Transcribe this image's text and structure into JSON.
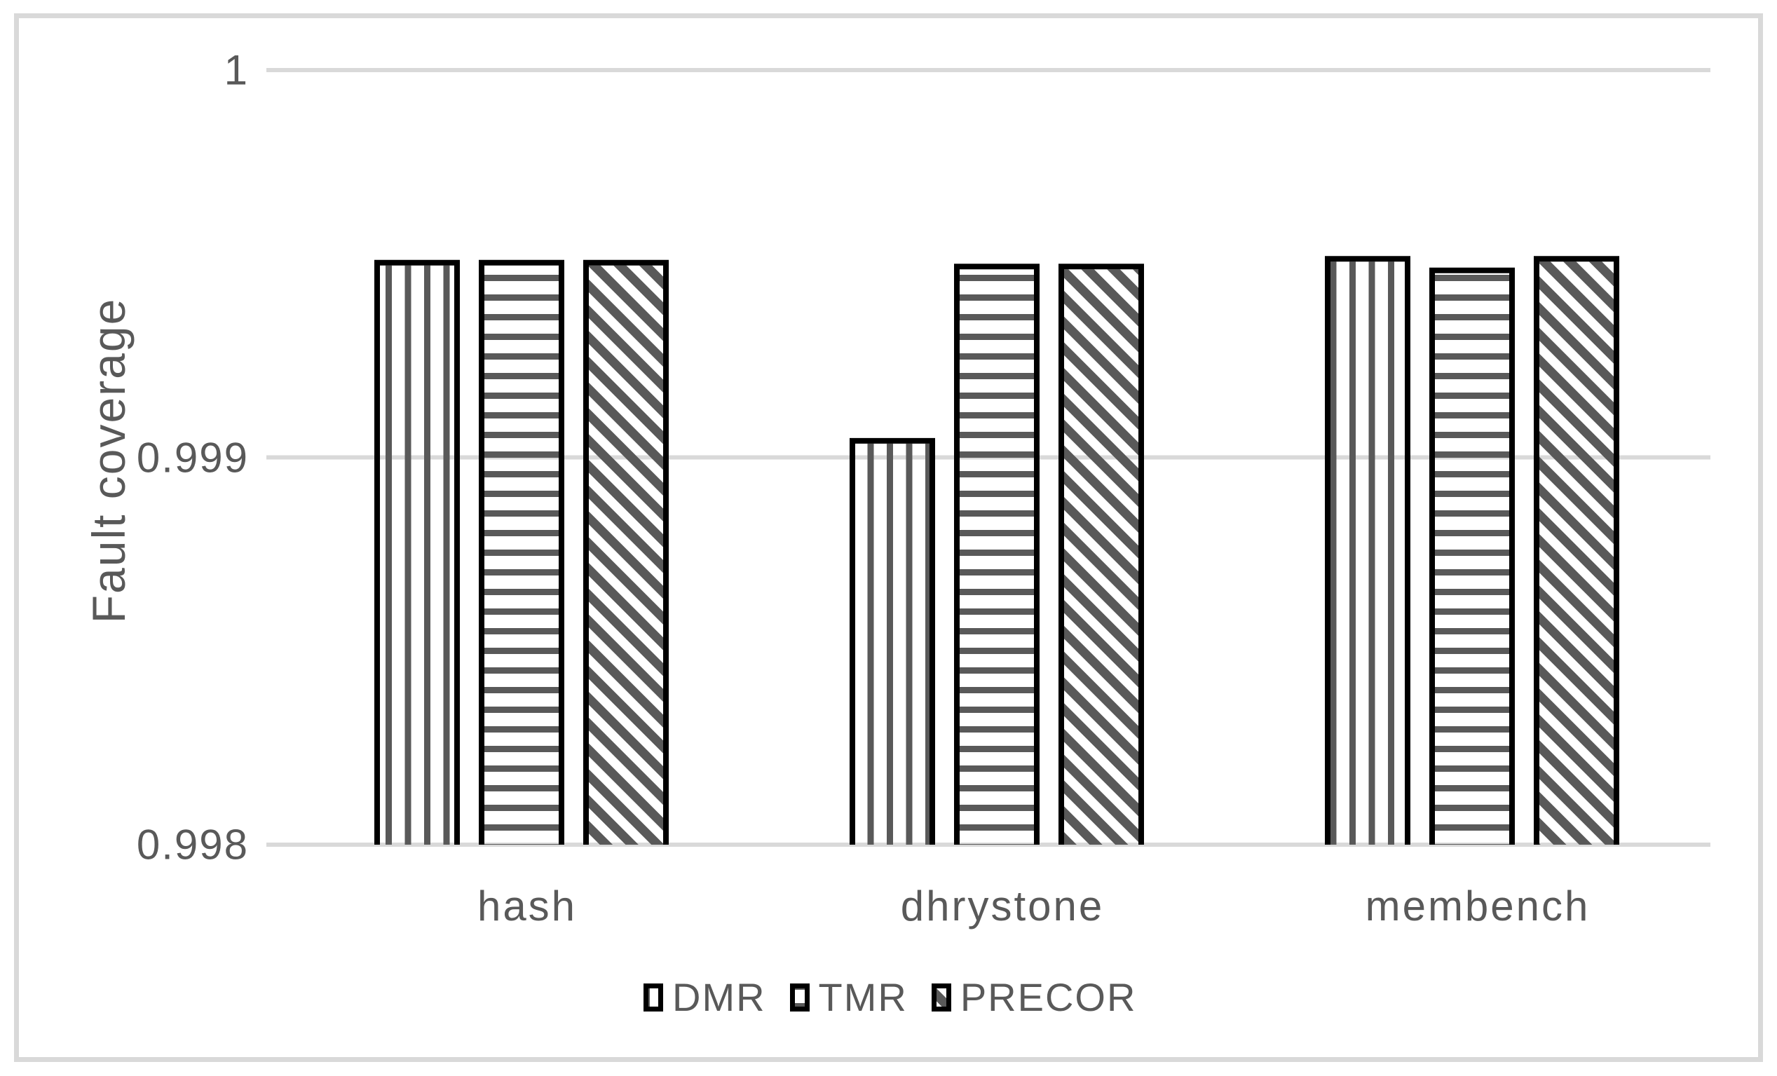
{
  "figure": {
    "background": "#ffffff",
    "border_color": "#d9d9d9"
  },
  "chart_data": {
    "type": "bar",
    "title": "",
    "xlabel": "",
    "ylabel": "Fault coverage",
    "categories": [
      "hash",
      "dhrystone",
      "membench"
    ],
    "series": [
      {
        "name": "DMR",
        "pattern": "vertical-stripes",
        "values": [
          0.99951,
          0.99905,
          0.99952
        ]
      },
      {
        "name": "TMR",
        "pattern": "horizontal-stripes",
        "values": [
          0.99951,
          0.9995,
          0.99949
        ]
      },
      {
        "name": "PRECOR",
        "pattern": "diagonal-stripes",
        "values": [
          0.99951,
          0.9995,
          0.99952
        ]
      }
    ],
    "ylim": [
      0.998,
      1.0
    ],
    "yticks": [
      {
        "value": 1.0,
        "label": "1"
      },
      {
        "value": 0.999,
        "label": "0.999"
      },
      {
        "value": 0.998,
        "label": "0.998"
      }
    ],
    "grid": true,
    "legend_position": "bottom",
    "colors": {
      "stripe": "#595959",
      "bar_border": "#000000",
      "gridline": "#d9d9d9",
      "text": "#595959"
    }
  }
}
